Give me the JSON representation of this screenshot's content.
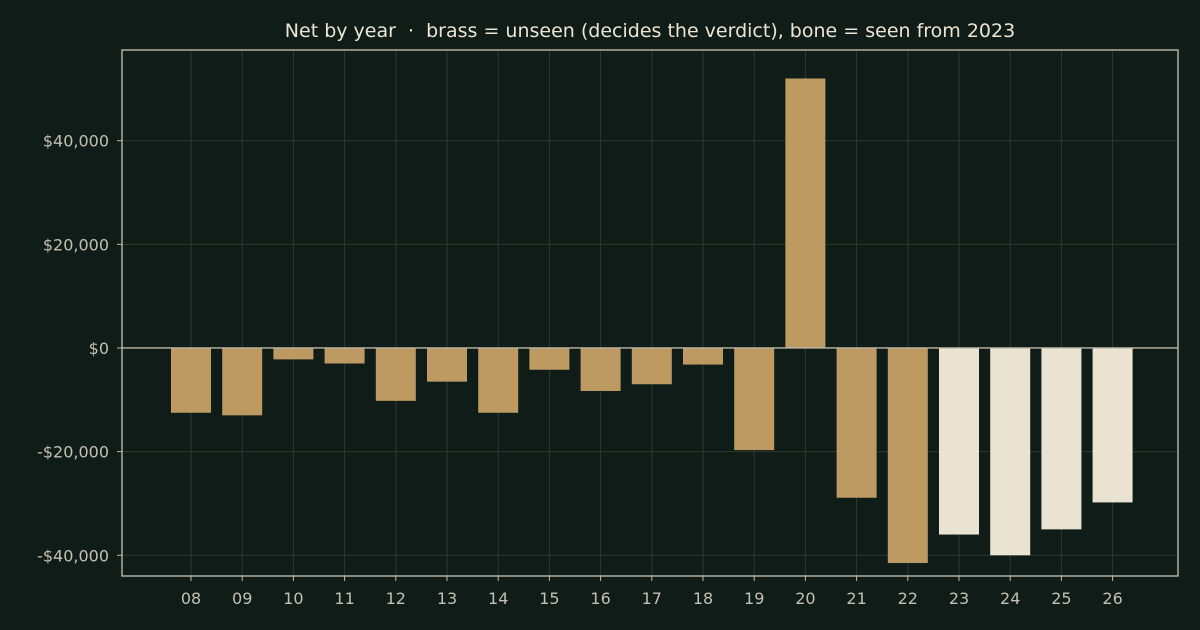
{
  "chart_data": {
    "type": "bar",
    "title": "Net by year  ·  brass = unseen (decides the verdict), bone = seen from 2023",
    "xlabel": "",
    "ylabel": "",
    "categories": [
      "08",
      "09",
      "10",
      "11",
      "12",
      "13",
      "14",
      "15",
      "16",
      "17",
      "18",
      "19",
      "20",
      "21",
      "22",
      "23",
      "24",
      "25",
      "26"
    ],
    "values": [
      -12500,
      -13000,
      -2200,
      -3000,
      -10200,
      -6500,
      -12500,
      -4200,
      -8300,
      -7000,
      -3200,
      -19700,
      52000,
      -28900,
      -41500,
      -36000,
      -40000,
      -35000,
      -29800
    ],
    "bar_groups": [
      "unseen",
      "unseen",
      "unseen",
      "unseen",
      "unseen",
      "unseen",
      "unseen",
      "unseen",
      "unseen",
      "unseen",
      "unseen",
      "unseen",
      "unseen",
      "unseen",
      "unseen",
      "seen",
      "seen",
      "seen",
      "seen"
    ],
    "group_colors": {
      "unseen": "#bc9a62",
      "seen": "#ebe3d1"
    },
    "ylim": [
      -44000,
      57500
    ],
    "yticks": [
      {
        "value": 40000,
        "label": "$40,000"
      },
      {
        "value": 20000,
        "label": "$20,000"
      },
      {
        "value": 0,
        "label": "$0"
      },
      {
        "value": -20000,
        "label": "-$20,000"
      },
      {
        "value": -40000,
        "label": "-$40,000"
      }
    ],
    "grid": true,
    "colors": {
      "background": "#101c17",
      "grid": "#2b3a32",
      "axis": "#bdb8a8",
      "tick_text": "#c3c0b2",
      "title_text": "#ece5d3"
    }
  }
}
